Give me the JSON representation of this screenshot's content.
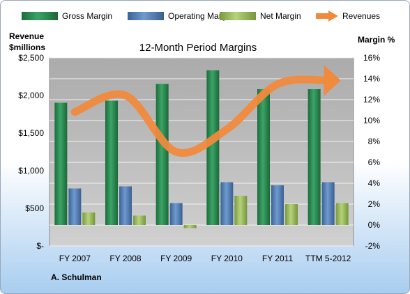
{
  "chart_data": {
    "type": "bar",
    "title": "12-Month Period Margins",
    "categories": [
      "FY 2007",
      "FY 2008",
      "FY 2009",
      "FY 2010",
      "FY 2011",
      "TTM 5-2012"
    ],
    "ylabel_left_line1": "Revenue",
    "ylabel_left_line2": "$millions",
    "ylabel_right": "Margin %",
    "y_left_ticks": [
      "$2,500",
      "$2,000",
      "$1,500",
      "$1,000",
      "$500",
      "$-"
    ],
    "y_left_range": [
      0,
      2500
    ],
    "y_right_ticks": [
      "16%",
      "14%",
      "12%",
      "10%",
      "8%",
      "6%",
      "4%",
      "2%",
      "0%",
      "-2%"
    ],
    "y_right_range": [
      -2,
      16
    ],
    "grid": true,
    "legend_position": "top",
    "series": [
      {
        "name": "Gross Margin",
        "axis": "right",
        "type": "bar",
        "color": "#2e8b57",
        "values": [
          11.7,
          11.9,
          13.5,
          14.8,
          13.0,
          13.0
        ]
      },
      {
        "name": "Operating Margin",
        "axis": "right",
        "type": "bar",
        "color": "#4f81bd",
        "values": [
          3.5,
          3.7,
          2.1,
          4.1,
          3.8,
          4.1
        ]
      },
      {
        "name": "Net Margin",
        "axis": "right",
        "type": "bar",
        "color": "#9bbb59",
        "values": [
          1.2,
          0.9,
          -0.3,
          2.8,
          2.0,
          2.1
        ]
      },
      {
        "name": "Revenues",
        "axis": "left",
        "type": "line",
        "color": "#f08a3c",
        "values": [
          1780,
          2000,
          1250,
          1550,
          2150,
          2200
        ]
      }
    ],
    "footer_label": "A. Schulman"
  }
}
